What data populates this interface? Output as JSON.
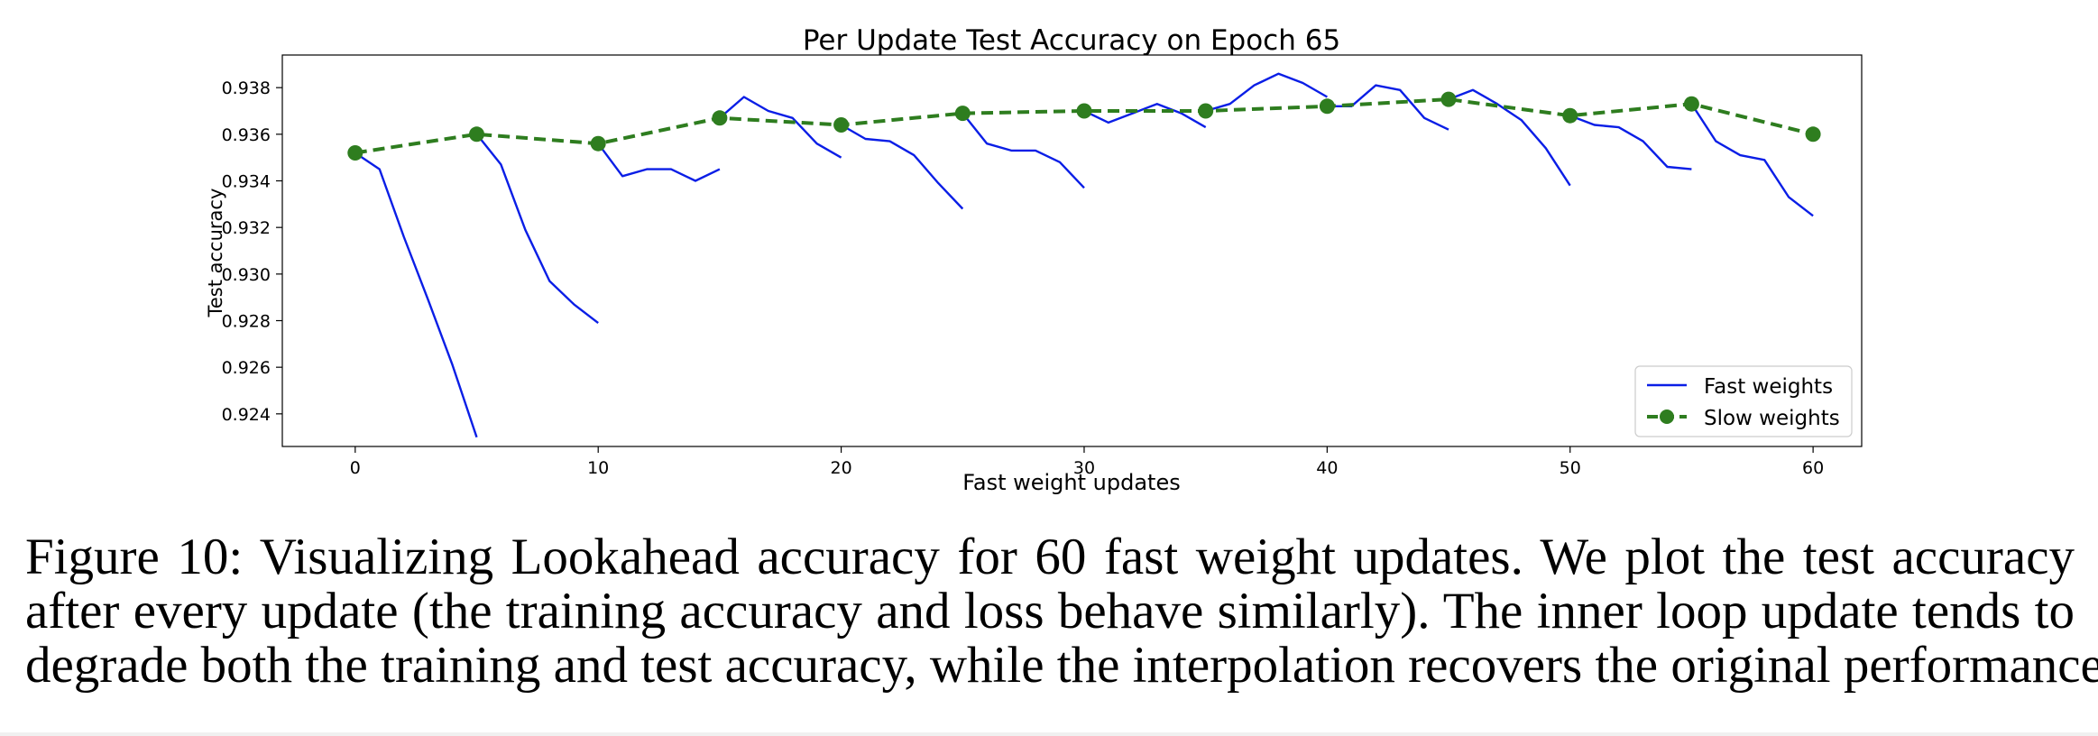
{
  "chart_data": {
    "type": "line",
    "title": "Per Update Test Accuracy on Epoch 65",
    "xlabel": "Fast weight updates",
    "ylabel": "Test accuracy",
    "xlim": [
      -3,
      62
    ],
    "ylim": [
      0.9226,
      0.9394
    ],
    "x_ticks": [
      0,
      10,
      20,
      30,
      40,
      50,
      60
    ],
    "y_ticks": [
      0.924,
      0.926,
      0.928,
      0.93,
      0.932,
      0.934,
      0.936,
      0.938
    ],
    "x_tick_labels": [
      "0",
      "10",
      "20",
      "30",
      "40",
      "50",
      "60"
    ],
    "y_tick_labels": [
      "0.924",
      "0.926",
      "0.928",
      "0.930",
      "0.932",
      "0.934",
      "0.936",
      "0.938"
    ],
    "grid": false,
    "legend_position": "lower-right",
    "series": [
      {
        "name": "Fast weights",
        "color": "#0a1ee6",
        "style": "solid",
        "segments": [
          {
            "x": [
              0,
              1,
              2,
              3,
              4,
              5
            ],
            "y": [
              0.9352,
              0.9345,
              0.9316,
              0.9289,
              0.9261,
              0.923
            ]
          },
          {
            "x": [
              5,
              6,
              7,
              8,
              9,
              10
            ],
            "y": [
              0.936,
              0.9347,
              0.9319,
              0.9297,
              0.9287,
              0.9279
            ]
          },
          {
            "x": [
              10,
              11,
              12,
              13,
              14,
              15
            ],
            "y": [
              0.9356,
              0.9342,
              0.9345,
              0.9345,
              0.934,
              0.9345
            ]
          },
          {
            "x": [
              15,
              16,
              17,
              18,
              19,
              20
            ],
            "y": [
              0.9367,
              0.9376,
              0.937,
              0.9367,
              0.9356,
              0.935
            ]
          },
          {
            "x": [
              20,
              21,
              22,
              23,
              24,
              25
            ],
            "y": [
              0.9364,
              0.9358,
              0.9357,
              0.9351,
              0.9339,
              0.9328
            ]
          },
          {
            "x": [
              25,
              26,
              27,
              28,
              29,
              30
            ],
            "y": [
              0.9369,
              0.9356,
              0.9353,
              0.9353,
              0.9348,
              0.9337
            ]
          },
          {
            "x": [
              30,
              31,
              32,
              33,
              34,
              35
            ],
            "y": [
              0.937,
              0.9365,
              0.9369,
              0.9373,
              0.9369,
              0.9363
            ]
          },
          {
            "x": [
              35,
              36,
              37,
              38,
              39,
              40
            ],
            "y": [
              0.937,
              0.9373,
              0.9381,
              0.9386,
              0.9382,
              0.9376
            ]
          },
          {
            "x": [
              40,
              41,
              42,
              43,
              44,
              45
            ],
            "y": [
              0.9372,
              0.9372,
              0.9381,
              0.9379,
              0.9367,
              0.9362
            ]
          },
          {
            "x": [
              45,
              46,
              47,
              48,
              49,
              50
            ],
            "y": [
              0.9375,
              0.9379,
              0.9373,
              0.9366,
              0.9354,
              0.9338
            ]
          },
          {
            "x": [
              50,
              51,
              52,
              53,
              54,
              55
            ],
            "y": [
              0.9368,
              0.9364,
              0.9363,
              0.9357,
              0.9346,
              0.9345
            ]
          },
          {
            "x": [
              55,
              56,
              57,
              58,
              59,
              60
            ],
            "y": [
              0.9373,
              0.9357,
              0.9351,
              0.9349,
              0.9333,
              0.9325
            ]
          }
        ]
      },
      {
        "name": "Slow weights",
        "color": "#2e7d1f",
        "style": "dashed",
        "marker": "circle",
        "x": [
          0,
          5,
          10,
          15,
          20,
          25,
          30,
          35,
          40,
          45,
          50,
          55,
          60
        ],
        "y": [
          0.9352,
          0.936,
          0.9356,
          0.9367,
          0.9364,
          0.9369,
          0.937,
          0.937,
          0.9372,
          0.9375,
          0.9368,
          0.9373,
          0.936
        ]
      }
    ]
  },
  "caption": {
    "lines": [
      "Figure 10: Visualizing Lookahead accuracy for 60 fast weight updates. We plot the test accuracy",
      "after every update (the training accuracy and loss behave similarly). The inner loop update tends to",
      "degrade both the training and test accuracy, while the interpolation recovers the original performance."
    ]
  }
}
